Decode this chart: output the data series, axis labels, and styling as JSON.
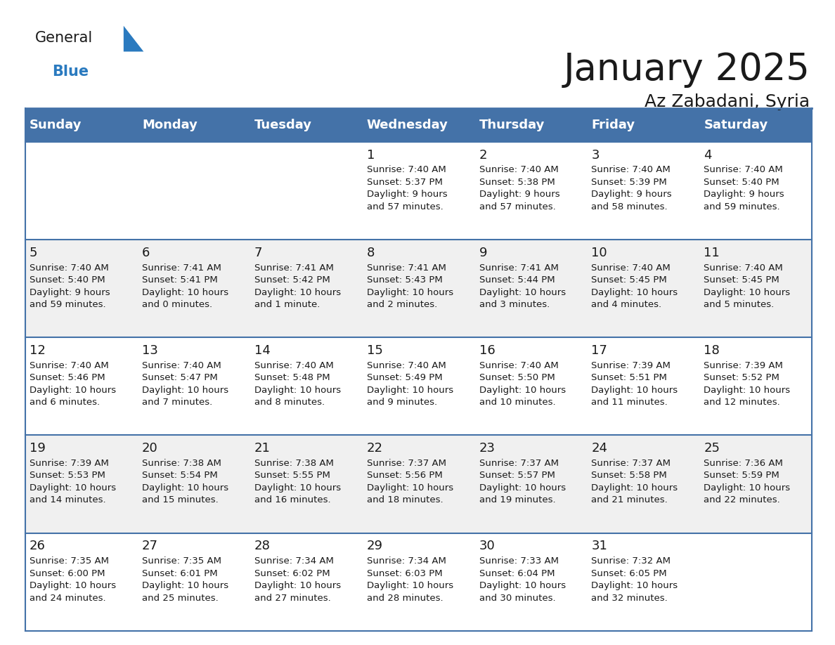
{
  "title": "January 2025",
  "subtitle": "Az Zabadani, Syria",
  "header_color": "#4472a8",
  "header_text_color": "#ffffff",
  "cell_bg_odd": "#f0f0f0",
  "cell_bg_even": "#ffffff",
  "border_color": "#4472a8",
  "day_headers": [
    "Sunday",
    "Monday",
    "Tuesday",
    "Wednesday",
    "Thursday",
    "Friday",
    "Saturday"
  ],
  "title_fontsize": 38,
  "subtitle_fontsize": 18,
  "header_fontsize": 13,
  "cell_num_fontsize": 13,
  "cell_text_fontsize": 9.5,
  "logo_general_color": "#1a1a1a",
  "logo_blue_color": "#2a7abf",
  "weeks": [
    [
      {
        "day": null,
        "sunrise": null,
        "sunset": null,
        "daylight": null
      },
      {
        "day": null,
        "sunrise": null,
        "sunset": null,
        "daylight": null
      },
      {
        "day": null,
        "sunrise": null,
        "sunset": null,
        "daylight": null
      },
      {
        "day": 1,
        "sunrise": "7:40 AM",
        "sunset": "5:37 PM",
        "daylight": "9 hours\nand 57 minutes."
      },
      {
        "day": 2,
        "sunrise": "7:40 AM",
        "sunset": "5:38 PM",
        "daylight": "9 hours\nand 57 minutes."
      },
      {
        "day": 3,
        "sunrise": "7:40 AM",
        "sunset": "5:39 PM",
        "daylight": "9 hours\nand 58 minutes."
      },
      {
        "day": 4,
        "sunrise": "7:40 AM",
        "sunset": "5:40 PM",
        "daylight": "9 hours\nand 59 minutes."
      }
    ],
    [
      {
        "day": 5,
        "sunrise": "7:40 AM",
        "sunset": "5:40 PM",
        "daylight": "9 hours\nand 59 minutes."
      },
      {
        "day": 6,
        "sunrise": "7:41 AM",
        "sunset": "5:41 PM",
        "daylight": "10 hours\nand 0 minutes."
      },
      {
        "day": 7,
        "sunrise": "7:41 AM",
        "sunset": "5:42 PM",
        "daylight": "10 hours\nand 1 minute."
      },
      {
        "day": 8,
        "sunrise": "7:41 AM",
        "sunset": "5:43 PM",
        "daylight": "10 hours\nand 2 minutes."
      },
      {
        "day": 9,
        "sunrise": "7:41 AM",
        "sunset": "5:44 PM",
        "daylight": "10 hours\nand 3 minutes."
      },
      {
        "day": 10,
        "sunrise": "7:40 AM",
        "sunset": "5:45 PM",
        "daylight": "10 hours\nand 4 minutes."
      },
      {
        "day": 11,
        "sunrise": "7:40 AM",
        "sunset": "5:45 PM",
        "daylight": "10 hours\nand 5 minutes."
      }
    ],
    [
      {
        "day": 12,
        "sunrise": "7:40 AM",
        "sunset": "5:46 PM",
        "daylight": "10 hours\nand 6 minutes."
      },
      {
        "day": 13,
        "sunrise": "7:40 AM",
        "sunset": "5:47 PM",
        "daylight": "10 hours\nand 7 minutes."
      },
      {
        "day": 14,
        "sunrise": "7:40 AM",
        "sunset": "5:48 PM",
        "daylight": "10 hours\nand 8 minutes."
      },
      {
        "day": 15,
        "sunrise": "7:40 AM",
        "sunset": "5:49 PM",
        "daylight": "10 hours\nand 9 minutes."
      },
      {
        "day": 16,
        "sunrise": "7:40 AM",
        "sunset": "5:50 PM",
        "daylight": "10 hours\nand 10 minutes."
      },
      {
        "day": 17,
        "sunrise": "7:39 AM",
        "sunset": "5:51 PM",
        "daylight": "10 hours\nand 11 minutes."
      },
      {
        "day": 18,
        "sunrise": "7:39 AM",
        "sunset": "5:52 PM",
        "daylight": "10 hours\nand 12 minutes."
      }
    ],
    [
      {
        "day": 19,
        "sunrise": "7:39 AM",
        "sunset": "5:53 PM",
        "daylight": "10 hours\nand 14 minutes."
      },
      {
        "day": 20,
        "sunrise": "7:38 AM",
        "sunset": "5:54 PM",
        "daylight": "10 hours\nand 15 minutes."
      },
      {
        "day": 21,
        "sunrise": "7:38 AM",
        "sunset": "5:55 PM",
        "daylight": "10 hours\nand 16 minutes."
      },
      {
        "day": 22,
        "sunrise": "7:37 AM",
        "sunset": "5:56 PM",
        "daylight": "10 hours\nand 18 minutes."
      },
      {
        "day": 23,
        "sunrise": "7:37 AM",
        "sunset": "5:57 PM",
        "daylight": "10 hours\nand 19 minutes."
      },
      {
        "day": 24,
        "sunrise": "7:37 AM",
        "sunset": "5:58 PM",
        "daylight": "10 hours\nand 21 minutes."
      },
      {
        "day": 25,
        "sunrise": "7:36 AM",
        "sunset": "5:59 PM",
        "daylight": "10 hours\nand 22 minutes."
      }
    ],
    [
      {
        "day": 26,
        "sunrise": "7:35 AM",
        "sunset": "6:00 PM",
        "daylight": "10 hours\nand 24 minutes."
      },
      {
        "day": 27,
        "sunrise": "7:35 AM",
        "sunset": "6:01 PM",
        "daylight": "10 hours\nand 25 minutes."
      },
      {
        "day": 28,
        "sunrise": "7:34 AM",
        "sunset": "6:02 PM",
        "daylight": "10 hours\nand 27 minutes."
      },
      {
        "day": 29,
        "sunrise": "7:34 AM",
        "sunset": "6:03 PM",
        "daylight": "10 hours\nand 28 minutes."
      },
      {
        "day": 30,
        "sunrise": "7:33 AM",
        "sunset": "6:04 PM",
        "daylight": "10 hours\nand 30 minutes."
      },
      {
        "day": 31,
        "sunrise": "7:32 AM",
        "sunset": "6:05 PM",
        "daylight": "10 hours\nand 32 minutes."
      },
      {
        "day": null,
        "sunrise": null,
        "sunset": null,
        "daylight": null
      }
    ]
  ]
}
